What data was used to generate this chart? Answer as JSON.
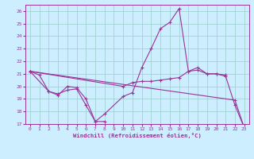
{
  "bg_color": "#cceeff",
  "grid_color": "#99cccc",
  "line_color": "#993399",
  "xlabel": "Windchill (Refroidissement éolien,°C)",
  "xlim": [
    -0.5,
    23.5
  ],
  "ylim": [
    17,
    26.5
  ],
  "yticks": [
    17,
    18,
    19,
    20,
    21,
    22,
    23,
    24,
    25,
    26
  ],
  "xticks": [
    0,
    1,
    2,
    3,
    4,
    5,
    6,
    7,
    8,
    9,
    10,
    11,
    12,
    13,
    14,
    15,
    16,
    17,
    18,
    19,
    20,
    21,
    22,
    23
  ],
  "lines": [
    {
      "x": [
        0,
        1,
        2,
        3,
        4,
        5,
        6,
        7,
        8
      ],
      "y": [
        21.2,
        20.9,
        19.6,
        19.4,
        19.7,
        19.8,
        18.5,
        17.2,
        17.2
      ]
    },
    {
      "x": [
        0,
        10,
        11,
        12,
        13,
        14,
        15,
        16,
        17,
        18,
        19,
        20,
        21
      ],
      "y": [
        21.2,
        20.0,
        20.3,
        20.4,
        20.4,
        20.5,
        20.6,
        20.7,
        21.2,
        21.3,
        21.0,
        21.0,
        20.9
      ]
    },
    {
      "x": [
        0,
        22,
        23
      ],
      "y": [
        21.2,
        18.9,
        16.7
      ]
    },
    {
      "x": [
        0,
        2,
        3,
        4,
        5,
        6,
        7,
        8,
        10,
        11,
        12,
        13,
        14,
        15,
        16,
        17,
        18,
        19,
        20,
        21,
        22,
        23
      ],
      "y": [
        21.2,
        19.6,
        19.3,
        20.0,
        19.9,
        19.0,
        17.2,
        17.8,
        19.2,
        19.5,
        21.5,
        23.0,
        24.6,
        25.1,
        26.2,
        21.2,
        21.5,
        21.0,
        21.0,
        20.8,
        18.5,
        16.7
      ]
    }
  ]
}
